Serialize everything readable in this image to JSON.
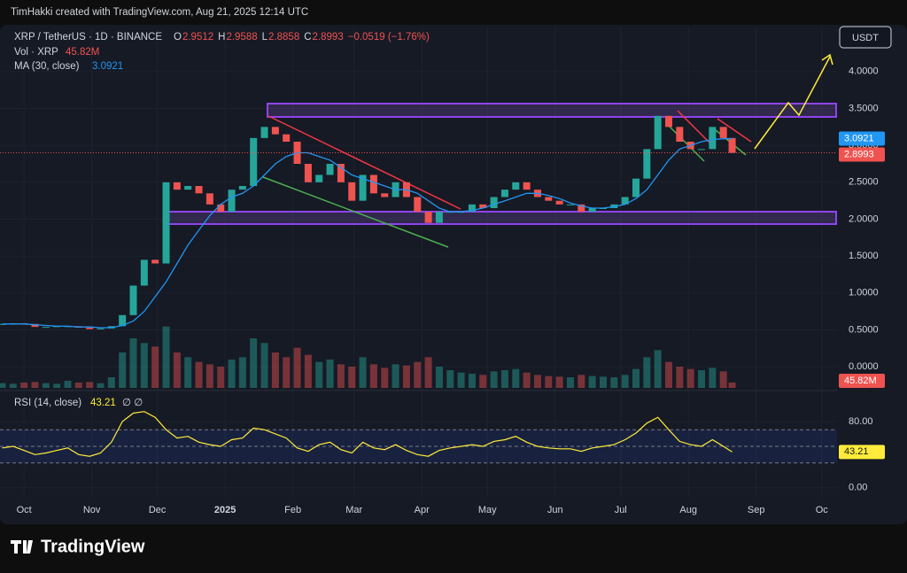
{
  "header": {
    "credit": "TimHakki created with TradingView.com, Aug 21, 2025 12:14 UTC",
    "brand": "TradingView"
  },
  "chart_data": {
    "type": "candlestick",
    "title": "XRP / TetherUS · 1D · BINANCE",
    "ohlc": {
      "o_label": "O",
      "o": "2.9512",
      "h_label": "H",
      "h": "2.9588",
      "l_label": "L",
      "l": "2.8858",
      "c_label": "C",
      "c": "2.8993",
      "change": "−0.0519 (−1.76%)"
    },
    "currency": "USDT",
    "up_color": "#26a69a",
    "down_color": "#ef5350",
    "x": [
      -10,
      -5,
      0,
      5,
      10,
      15,
      20,
      25,
      30,
      35,
      40,
      45,
      50,
      55,
      60,
      65,
      70,
      75,
      80,
      85,
      90,
      95,
      100,
      105,
      110,
      115,
      120,
      125,
      130,
      135,
      140,
      145,
      150,
      155,
      160,
      165,
      170,
      175,
      180,
      185,
      190,
      195,
      200,
      205,
      210,
      215,
      220,
      225,
      230,
      235,
      240,
      245,
      250,
      255,
      260,
      265,
      270,
      275,
      280,
      285,
      290,
      295,
      300,
      305,
      310,
      315,
      320,
      324
    ],
    "close": [
      0.58,
      0.59,
      0.58,
      0.54,
      0.54,
      0.55,
      0.55,
      0.53,
      0.51,
      0.52,
      0.55,
      0.7,
      1.1,
      1.45,
      1.4,
      2.5,
      2.4,
      2.45,
      2.35,
      2.2,
      2.1,
      2.4,
      2.45,
      3.1,
      3.25,
      3.15,
      3.05,
      2.75,
      2.5,
      2.6,
      2.75,
      2.5,
      2.25,
      2.6,
      2.35,
      2.3,
      2.5,
      2.3,
      2.1,
      1.95,
      2.1,
      2.1,
      2.1,
      2.2,
      2.15,
      2.3,
      2.4,
      2.5,
      2.4,
      2.3,
      2.25,
      2.2,
      2.2,
      2.1,
      2.15,
      2.15,
      2.2,
      2.3,
      2.55,
      2.95,
      3.4,
      3.25,
      3.05,
      2.95,
      2.95,
      3.25,
      3.1,
      2.8993
    ],
    "last_price_label": "2.8993",
    "ma": {
      "name": "MA (30, close)",
      "value_label": "3.0921",
      "color": "#2196f3",
      "values": [
        0.58,
        0.58,
        0.58,
        0.57,
        0.56,
        0.55,
        0.55,
        0.54,
        0.54,
        0.53,
        0.53,
        0.56,
        0.62,
        0.75,
        0.95,
        1.15,
        1.4,
        1.65,
        1.85,
        2.05,
        2.2,
        2.3,
        2.35,
        2.45,
        2.6,
        2.75,
        2.85,
        2.9,
        2.9,
        2.85,
        2.8,
        2.7,
        2.6,
        2.55,
        2.5,
        2.45,
        2.4,
        2.4,
        2.35,
        2.25,
        2.15,
        2.1,
        2.1,
        2.12,
        2.15,
        2.2,
        2.25,
        2.3,
        2.35,
        2.35,
        2.32,
        2.28,
        2.22,
        2.18,
        2.15,
        2.15,
        2.17,
        2.2,
        2.28,
        2.4,
        2.6,
        2.8,
        2.95,
        3.0,
        3.05,
        3.08,
        3.09,
        3.0921
      ],
      "last": 3.0921
    },
    "volume": {
      "name": "Vol · XRP",
      "value_label": "45.82M",
      "ylim": [
        0,
        600
      ],
      "values": [
        40,
        35,
        45,
        50,
        40,
        35,
        60,
        45,
        50,
        40,
        90,
        300,
        420,
        380,
        350,
        520,
        300,
        260,
        220,
        200,
        180,
        240,
        260,
        420,
        380,
        300,
        260,
        340,
        280,
        220,
        240,
        200,
        180,
        260,
        200,
        170,
        200,
        190,
        220,
        260,
        180,
        150,
        130,
        120,
        110,
        140,
        150,
        160,
        130,
        110,
        100,
        95,
        90,
        110,
        100,
        95,
        90,
        110,
        160,
        260,
        320,
        220,
        180,
        160,
        150,
        170,
        140,
        45.82
      ],
      "last": 45.82
    },
    "xlim": [
      -11,
      372
    ],
    "ylim": [
      -0.19,
      4.61
    ],
    "yticks": [
      {
        "value": 0,
        "label": "0.0000"
      },
      {
        "value": 0.5,
        "label": "0.5000"
      },
      {
        "value": 1,
        "label": "1.0000"
      },
      {
        "value": 1.5,
        "label": "1.5000"
      },
      {
        "value": 2,
        "label": "2.0000"
      },
      {
        "value": 2.5,
        "label": "2.5000"
      },
      {
        "value": 3,
        "label": "3.0000"
      },
      {
        "value": 3.5,
        "label": "3.5000"
      },
      {
        "value": 4,
        "label": "4.0000"
      }
    ],
    "xticks": [
      {
        "value": 0,
        "label": "Oct"
      },
      {
        "value": 31,
        "label": "Nov"
      },
      {
        "value": 61,
        "label": "Dec"
      },
      {
        "value": 92,
        "label": "2025"
      },
      {
        "value": 123,
        "label": "Feb"
      },
      {
        "value": 151,
        "label": "Mar"
      },
      {
        "value": 182,
        "label": "Apr"
      },
      {
        "value": 212,
        "label": "May"
      },
      {
        "value": 243,
        "label": "Jun"
      },
      {
        "value": 273,
        "label": "Jul"
      },
      {
        "value": 304,
        "label": "Aug"
      },
      {
        "value": 335,
        "label": "Sep"
      },
      {
        "value": 365,
        "label": "Oc"
      }
    ],
    "rsi": {
      "name": "RSI (14, close)",
      "value_label": "43.21",
      "symbols": "∅ ∅",
      "color": "#ffeb3b",
      "ylim": [
        -12,
        113
      ],
      "yticks": [
        {
          "value": 80,
          "label": "80.00"
        },
        {
          "value": 0,
          "label": "0.00"
        }
      ],
      "levels": [
        70,
        50,
        30
      ],
      "values": [
        48,
        50,
        45,
        40,
        42,
        45,
        48,
        40,
        38,
        42,
        55,
        80,
        90,
        92,
        85,
        70,
        60,
        62,
        55,
        52,
        50,
        58,
        60,
        72,
        70,
        65,
        60,
        48,
        44,
        52,
        55,
        46,
        42,
        55,
        48,
        46,
        52,
        45,
        40,
        38,
        45,
        48,
        50,
        52,
        50,
        56,
        58,
        62,
        55,
        50,
        48,
        47,
        47,
        44,
        48,
        50,
        52,
        58,
        66,
        78,
        85,
        70,
        56,
        52,
        50,
        58,
        50,
        43.21
      ],
      "last": 43.21
    }
  }
}
